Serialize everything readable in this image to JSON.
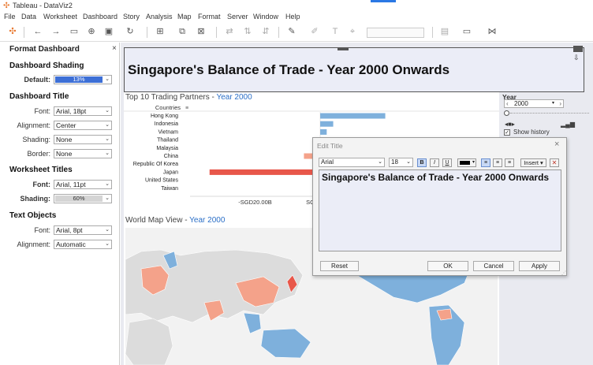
{
  "window": {
    "title": "Tableau - DataViz2"
  },
  "menu": [
    "File",
    "Data",
    "Worksheet",
    "Dashboard",
    "Story",
    "Analysis",
    "Map",
    "Format",
    "Server",
    "Window",
    "Help"
  ],
  "format_pane": {
    "header": "Format Dashboard",
    "shading_section": "Dashboard Shading",
    "shading_default_label": "Default:",
    "shading_default_value": "13%",
    "title_section": "Dashboard Title",
    "font_label": "Font:",
    "title_font": "Arial, 18pt",
    "alignment_label": "Alignment:",
    "title_alignment": "Center",
    "shading_label": "Shading:",
    "title_shading": "None",
    "border_label": "Border:",
    "title_border": "None",
    "ws_section": "Worksheet Titles",
    "ws_font_label": "Font:",
    "ws_font": "Arial, 11pt",
    "ws_shading_label": "Shading:",
    "ws_shading": "60%",
    "text_section": "Text Objects",
    "text_font_label": "Font:",
    "text_font": "Arial, 8pt",
    "text_alignment_label": "Alignment:",
    "text_alignment": "Automatic"
  },
  "dashboard": {
    "title": "Singapore's Balance of Trade - Year 2000 Onwards",
    "ws1_title": "Top 10 Trading Partners - ",
    "ws1_year": "Year 2000",
    "ws2_title": "World Map View - ",
    "ws2_year": "Year 2000"
  },
  "chart_data": {
    "type": "bar",
    "orientation": "horizontal",
    "column_header": "Countries",
    "categories": [
      "Hong Kong",
      "Indonesia",
      "Vietnam",
      "Thailand",
      "Malaysia",
      "China",
      "Republic Of Korea",
      "Japan",
      "United States",
      "Taiwan"
    ],
    "values": [
      20,
      4,
      2,
      1,
      6,
      -5,
      0.5,
      -34,
      11,
      6
    ],
    "colors": {
      "positive": "#7eb0dc",
      "negative_small": "#f4a28a",
      "negative_large": "#e8574a"
    },
    "x_tick_labels": [
      "-SGD20.00B",
      "SGD0.00B"
    ],
    "x_ticks": [
      -20,
      0
    ],
    "xlim": [
      -40,
      55
    ]
  },
  "year_filter": {
    "label": "Year",
    "value": "2000",
    "show_history_label": "Show history"
  },
  "dialog": {
    "title": "Edit Title",
    "font": "Arial",
    "size": "18",
    "bold": "B",
    "italic": "I",
    "underline": "U",
    "insert": "Insert",
    "text": "Singapore's Balance of Trade - Year 2000 Onwards",
    "reset": "Reset",
    "ok": "OK",
    "cancel": "Cancel",
    "apply": "Apply"
  }
}
